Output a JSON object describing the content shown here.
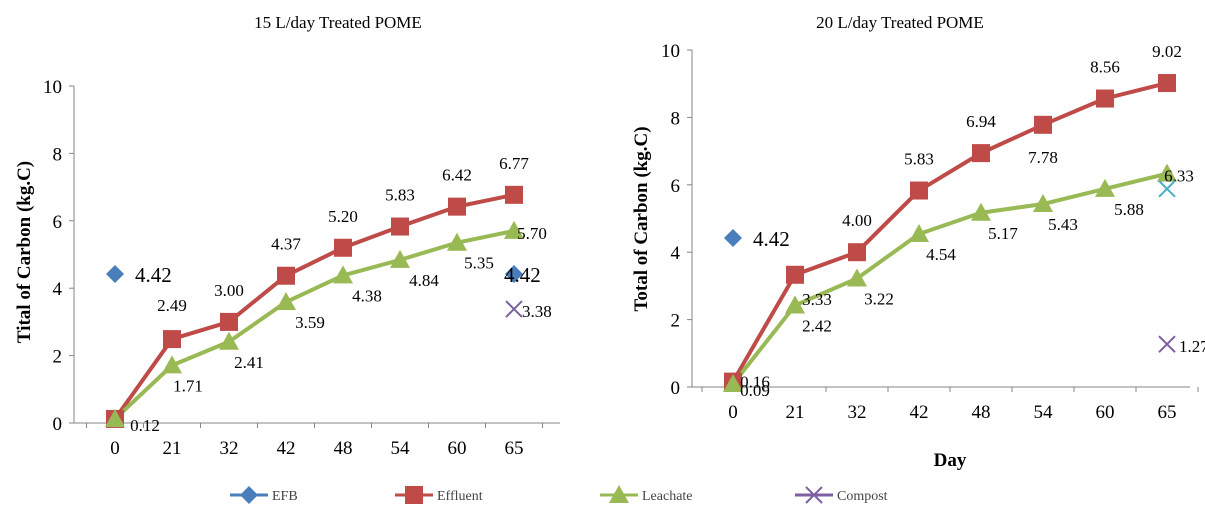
{
  "colors": {
    "EFB": "#4a7ebb",
    "Effluent": "#be4b48",
    "Leachate": "#98b954",
    "Compost": "#7d60a0",
    "Compost_right": "#4bacc6"
  },
  "legend": {
    "items": [
      {
        "name": "EFB",
        "marker": "diamond"
      },
      {
        "name": "Effluent",
        "marker": "square"
      },
      {
        "name": "Leachate",
        "marker": "triangle"
      },
      {
        "name": "Compost",
        "marker": "x"
      }
    ]
  },
  "chart_data": [
    {
      "type": "line",
      "title": "15 L/day Treated POME",
      "ylabel": "Tital of Carbon (kg.C)",
      "xlabel": "",
      "categories": [
        "0",
        "21",
        "32",
        "42",
        "48",
        "54",
        "60",
        "65"
      ],
      "ylim": [
        0,
        10
      ],
      "yticks": [
        "0",
        "2",
        "4",
        "6",
        "8",
        "10"
      ],
      "series": [
        {
          "name": "Effluent",
          "values": [
            0.12,
            2.49,
            3.0,
            4.37,
            5.2,
            5.83,
            6.42,
            6.77
          ],
          "labels": [
            "0.12",
            "2.49",
            "3.00",
            "4.37",
            "5.20",
            "5.83",
            "6.42",
            "6.77"
          ]
        },
        {
          "name": "Leachate",
          "values": [
            0.12,
            1.71,
            2.41,
            3.59,
            4.38,
            4.84,
            5.35,
            5.7
          ],
          "labels": [
            "",
            "1.71",
            "2.41",
            "3.59",
            "4.38",
            "4.84",
            "5.35",
            "5.70"
          ]
        }
      ],
      "points": [
        {
          "series": "EFB",
          "category": "0",
          "value": 4.42,
          "label": "4.42"
        },
        {
          "series": "EFB",
          "category": "65",
          "value": 4.42,
          "label": "4.42"
        },
        {
          "series": "Compost",
          "category": "65",
          "value": 3.38,
          "label": "3.38"
        }
      ],
      "grid": false
    },
    {
      "type": "line",
      "title": "20 L/day Treated  POME",
      "ylabel": "Total of Carbon (kg.C)",
      "xlabel": "Day",
      "categories": [
        "0",
        "21",
        "32",
        "42",
        "48",
        "54",
        "60",
        "65"
      ],
      "ylim": [
        0,
        10
      ],
      "yticks": [
        "0",
        "2",
        "4",
        "6",
        "8",
        "10"
      ],
      "series": [
        {
          "name": "Effluent",
          "values": [
            0.16,
            3.33,
            4.0,
            5.83,
            6.94,
            7.78,
            8.56,
            9.02
          ],
          "labels": [
            "0.16",
            "3.33",
            "4.00",
            "5.83",
            "6.94",
            "7.78",
            "8.56",
            "9.02"
          ]
        },
        {
          "name": "Leachate",
          "values": [
            0.09,
            2.42,
            3.22,
            4.54,
            5.17,
            5.43,
            5.88,
            6.33
          ],
          "labels": [
            "0.09",
            "2.42",
            "3.22",
            "4.54",
            "5.17",
            "5.43",
            "5.88",
            "6.33"
          ]
        }
      ],
      "points": [
        {
          "series": "EFB",
          "category": "0",
          "value": 4.42,
          "label": "4.42"
        },
        {
          "series": "Compost",
          "category": "65",
          "value": 1.27,
          "label": "1.27"
        },
        {
          "series": "Compost_right",
          "category": "65",
          "value": 5.88,
          "label": ""
        }
      ],
      "grid": false
    }
  ]
}
